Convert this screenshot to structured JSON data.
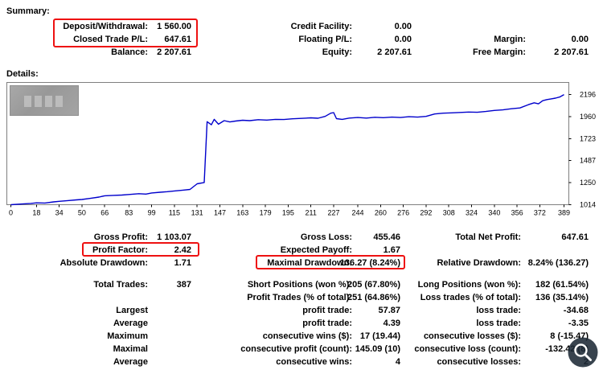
{
  "colors": {
    "highlight": "#ee1111",
    "chart_line": "#0000cc",
    "chart_border": "#7f7f7f"
  },
  "summary": {
    "heading": "Summary:",
    "rows": [
      {
        "c": [
          "Deposit/Withdrawal:",
          "1 560.00",
          "Credit Facility:",
          "0.00",
          "",
          ""
        ]
      },
      {
        "c": [
          "Closed Trade P/L:",
          "647.61",
          "Floating P/L:",
          "0.00",
          "Margin:",
          "0.00"
        ]
      },
      {
        "c": [
          "Balance:",
          "2 207.61",
          "Equity:",
          "2 207.61",
          "Free Margin:",
          "2 207.61"
        ]
      }
    ]
  },
  "details": {
    "heading": "Details:"
  },
  "chart_data": {
    "type": "line",
    "title": "",
    "xlabel": "",
    "ylabel": "",
    "xlim": [
      0,
      389
    ],
    "ylim": [
      1014,
      2326
    ],
    "xticks": [
      0,
      18,
      34,
      50,
      66,
      83,
      99,
      115,
      131,
      147,
      163,
      179,
      195,
      211,
      227,
      244,
      260,
      276,
      292,
      308,
      324,
      340,
      356,
      372,
      389
    ],
    "yticks": [
      2196,
      1960,
      1723,
      1487,
      1250,
      1014
    ],
    "grid": false,
    "legend": "none",
    "series": [
      {
        "name": "Balance",
        "color": "#0000cc",
        "points": [
          [
            0,
            1014
          ],
          [
            8,
            1022
          ],
          [
            14,
            1028
          ],
          [
            18,
            1034
          ],
          [
            24,
            1032
          ],
          [
            30,
            1044
          ],
          [
            34,
            1050
          ],
          [
            40,
            1058
          ],
          [
            46,
            1066
          ],
          [
            50,
            1070
          ],
          [
            56,
            1082
          ],
          [
            62,
            1096
          ],
          [
            66,
            1110
          ],
          [
            72,
            1114
          ],
          [
            78,
            1118
          ],
          [
            83,
            1124
          ],
          [
            90,
            1132
          ],
          [
            95,
            1128
          ],
          [
            99,
            1140
          ],
          [
            105,
            1148
          ],
          [
            110,
            1154
          ],
          [
            115,
            1162
          ],
          [
            121,
            1170
          ],
          [
            126,
            1178
          ],
          [
            131,
            1238
          ],
          [
            136,
            1252
          ],
          [
            138,
            1905
          ],
          [
            141,
            1872
          ],
          [
            143,
            1930
          ],
          [
            146,
            1878
          ],
          [
            150,
            1916
          ],
          [
            154,
            1902
          ],
          [
            158,
            1912
          ],
          [
            163,
            1920
          ],
          [
            168,
            1916
          ],
          [
            174,
            1926
          ],
          [
            180,
            1922
          ],
          [
            186,
            1930
          ],
          [
            192,
            1928
          ],
          [
            198,
            1936
          ],
          [
            204,
            1940
          ],
          [
            211,
            1946
          ],
          [
            216,
            1942
          ],
          [
            221,
            1962
          ],
          [
            225,
            1996
          ],
          [
            227,
            2002
          ],
          [
            229,
            1938
          ],
          [
            233,
            1930
          ],
          [
            238,
            1944
          ],
          [
            244,
            1950
          ],
          [
            250,
            1944
          ],
          [
            256,
            1952
          ],
          [
            262,
            1948
          ],
          [
            268,
            1954
          ],
          [
            274,
            1950
          ],
          [
            280,
            1958
          ],
          [
            286,
            1954
          ],
          [
            292,
            1962
          ],
          [
            298,
            1988
          ],
          [
            304,
            1996
          ],
          [
            310,
            2000
          ],
          [
            316,
            2004
          ],
          [
            322,
            2008
          ],
          [
            328,
            2006
          ],
          [
            334,
            2014
          ],
          [
            340,
            2026
          ],
          [
            346,
            2032
          ],
          [
            352,
            2044
          ],
          [
            358,
            2052
          ],
          [
            364,
            2088
          ],
          [
            368,
            2108
          ],
          [
            371,
            2096
          ],
          [
            374,
            2130
          ],
          [
            377,
            2142
          ],
          [
            380,
            2150
          ],
          [
            383,
            2158
          ],
          [
            386,
            2170
          ],
          [
            389,
            2196
          ]
        ]
      }
    ]
  },
  "stats_top": {
    "rows": [
      {
        "c": [
          "Gross Profit:",
          "1 103.07",
          "Gross Loss:",
          "455.46",
          "Total Net Profit:",
          "647.61"
        ]
      },
      {
        "c": [
          "Profit Factor:",
          "2.42",
          "Expected Payoff:",
          "1.67",
          "",
          ""
        ]
      },
      {
        "c": [
          "Absolute Drawdown:",
          "1.71",
          "Maximal Drawdown:",
          "136.27 (8.24%)",
          "Relative Drawdown:",
          "8.24% (136.27)"
        ]
      }
    ]
  },
  "stats_bottom": {
    "rows": [
      {
        "c": [
          "Total Trades:",
          "387",
          "Short Positions (won %):",
          "205 (67.80%)",
          "Long Positions (won %):",
          "182 (61.54%)"
        ]
      },
      {
        "c": [
          "",
          "",
          "Profit Trades (% of total):",
          "251 (64.86%)",
          "Loss trades (% of total):",
          "136 (35.14%)"
        ]
      },
      {
        "c": [
          "Largest",
          "",
          "profit trade:",
          "57.87",
          "loss trade:",
          "-34.68"
        ]
      },
      {
        "c": [
          "Average",
          "",
          "profit trade:",
          "4.39",
          "loss trade:",
          "-3.35"
        ]
      },
      {
        "c": [
          "Maximum",
          "",
          "consecutive wins ($):",
          "17 (19.44)",
          "consecutive losses ($):",
          "8 (-15.47)"
        ]
      },
      {
        "c": [
          "Maximal",
          "",
          "consecutive profit (count):",
          "145.09 (10)",
          "consecutive loss (count):",
          "-132.42 (8)"
        ]
      },
      {
        "c": [
          "Average",
          "",
          "consecutive wins:",
          "4",
          "consecutive losses:",
          "2"
        ]
      }
    ]
  }
}
